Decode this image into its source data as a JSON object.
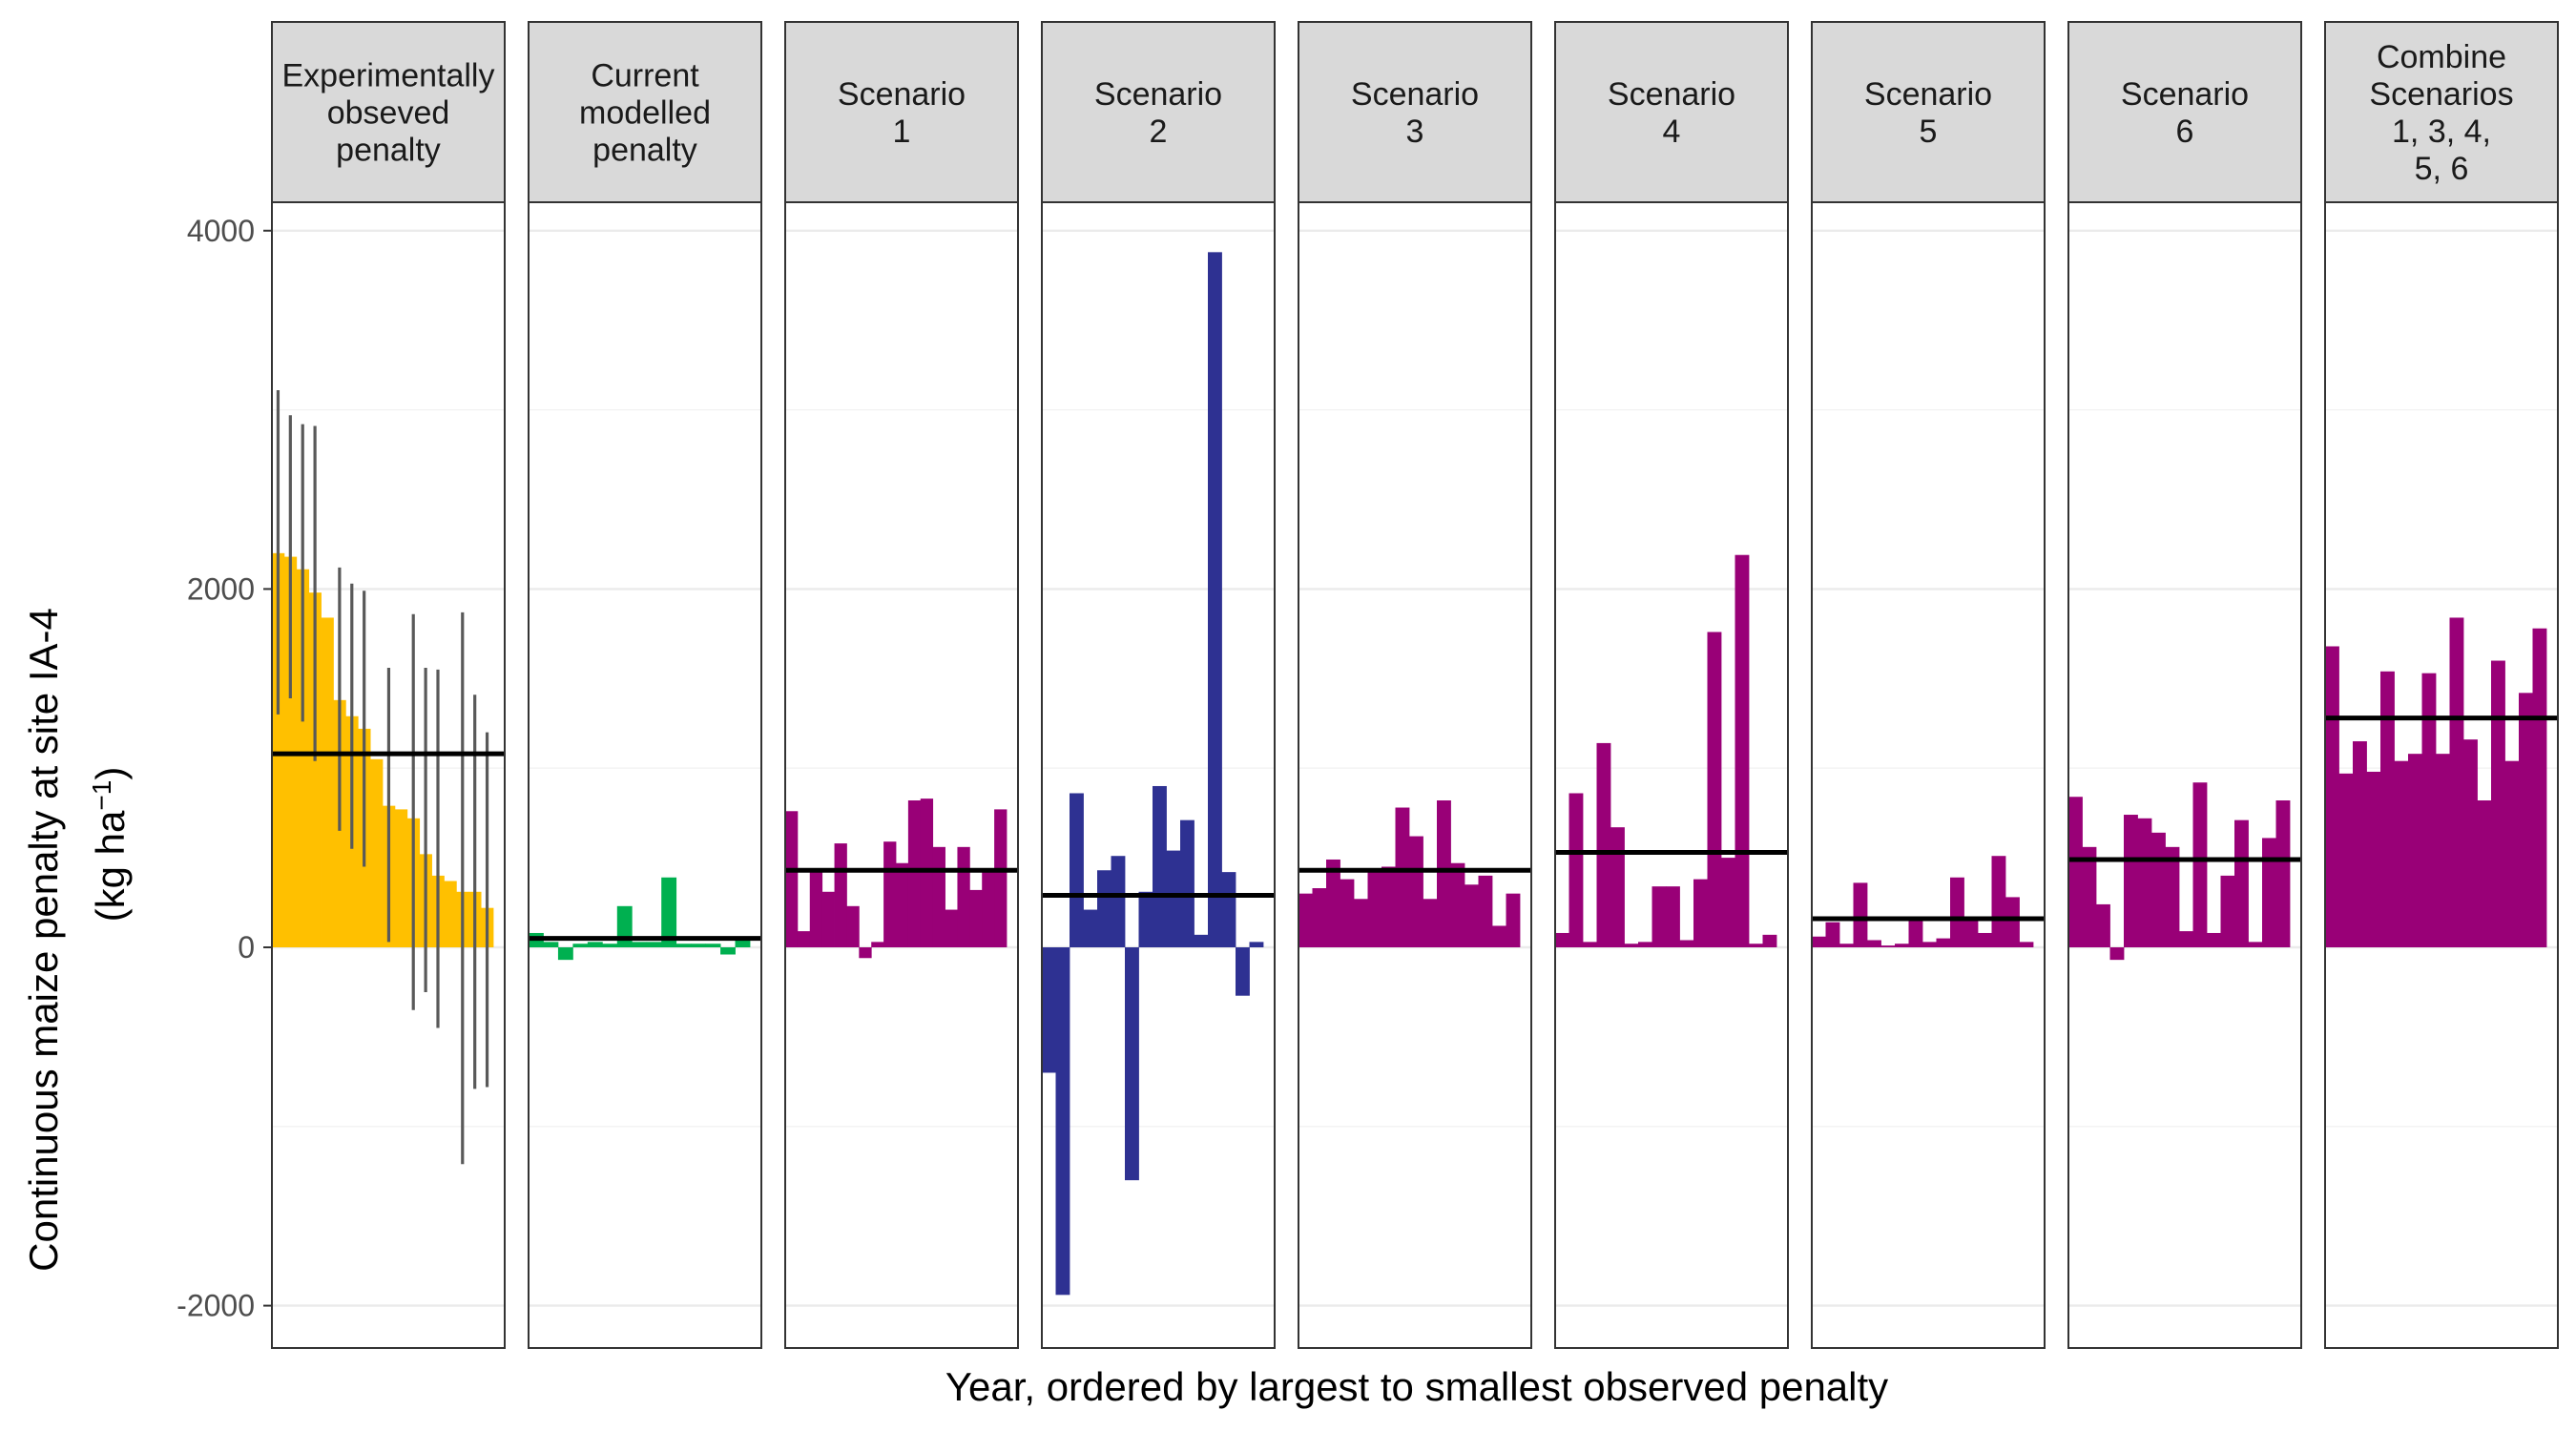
{
  "chart_data": {
    "type": "bar",
    "ylabel": "Continuous maize penalty at site IA-4",
    "ylabel_unit": "(kg  ha",
    "ylabel_exp": "−1",
    "ylabel_close": ")",
    "xlabel": "Year, ordered by largest to smallest observed penalty",
    "ylim": [
      -2200,
      4000
    ],
    "yticks": [
      -2000,
      0,
      2000,
      4000
    ],
    "ytick_labels": [
      "-2000",
      "0",
      "2000",
      "4000"
    ],
    "grid": true,
    "legend": "none",
    "panels": [
      {
        "title": [
          "Experimentally",
          "obseved",
          "penalty"
        ],
        "color": "#FFC000",
        "mean": 1080,
        "values": [
          2200,
          2180,
          2110,
          1980,
          1840,
          1380,
          1290,
          1220,
          1050,
          790,
          770,
          720,
          520,
          400,
          370,
          310,
          310,
          220
        ],
        "errors": [
          [
            1300,
            3110
          ],
          [
            1390,
            2970
          ],
          [
            1260,
            2920
          ],
          [
            1040,
            2910
          ],
          [
            null,
            null
          ],
          [
            650,
            2120
          ],
          [
            550,
            2030
          ],
          [
            450,
            1990
          ],
          [
            null,
            null
          ],
          [
            30,
            1560
          ],
          [
            null,
            null
          ],
          [
            -350,
            1860
          ],
          [
            -250,
            1560
          ],
          [
            -450,
            1550
          ],
          [
            null,
            null
          ],
          [
            -1210,
            1870
          ],
          [
            -790,
            1410
          ],
          [
            -780,
            1200
          ]
        ]
      },
      {
        "title": [
          "Current",
          "modelled",
          "penalty"
        ],
        "color": "#00B050",
        "mean": 50,
        "values": [
          80,
          30,
          -70,
          20,
          30,
          20,
          230,
          30,
          30,
          390,
          20,
          20,
          20,
          -40,
          40
        ]
      },
      {
        "title": [
          "Scenario",
          "1"
        ],
        "color": "#990077",
        "mean": 430,
        "values": [
          760,
          90,
          420,
          310,
          580,
          230,
          -60,
          30,
          590,
          470,
          820,
          830,
          560,
          210,
          560,
          320,
          440,
          770
        ]
      },
      {
        "title": [
          "Scenario",
          "2"
        ],
        "color": "#2E3192",
        "mean": 290,
        "values": [
          -700,
          -1940,
          860,
          210,
          430,
          510,
          -1300,
          310,
          900,
          540,
          710,
          70,
          3880,
          420,
          -270,
          30
        ]
      },
      {
        "title": [
          "Scenario",
          "3"
        ],
        "color": "#990077",
        "mean": 430,
        "values": [
          300,
          330,
          490,
          380,
          270,
          420,
          450,
          780,
          620,
          270,
          820,
          470,
          350,
          400,
          120,
          300
        ]
      },
      {
        "title": [
          "Scenario",
          "4"
        ],
        "color": "#990077",
        "mean": 530,
        "values": [
          80,
          860,
          30,
          1140,
          670,
          20,
          30,
          340,
          340,
          40,
          380,
          1760,
          500,
          2190,
          20,
          70
        ]
      },
      {
        "title": [
          "Scenario",
          "5"
        ],
        "color": "#990077",
        "mean": 160,
        "values": [
          60,
          140,
          20,
          360,
          40,
          10,
          20,
          150,
          30,
          50,
          390,
          170,
          80,
          510,
          280,
          30
        ]
      },
      {
        "title": [
          "Scenario",
          "6"
        ],
        "color": "#990077",
        "mean": 490,
        "values": [
          840,
          560,
          240,
          -70,
          740,
          720,
          640,
          560,
          90,
          920,
          80,
          400,
          710,
          30,
          610,
          820
        ]
      },
      {
        "title": [
          "Combine",
          "Scenarios",
          "1, 3, 4,",
          "5, 6"
        ],
        "color": "#990077",
        "mean": 1280,
        "values": [
          1680,
          970,
          1150,
          980,
          1540,
          1040,
          1080,
          1530,
          1080,
          1840,
          1160,
          820,
          1600,
          1040,
          1420,
          1780
        ]
      }
    ]
  }
}
